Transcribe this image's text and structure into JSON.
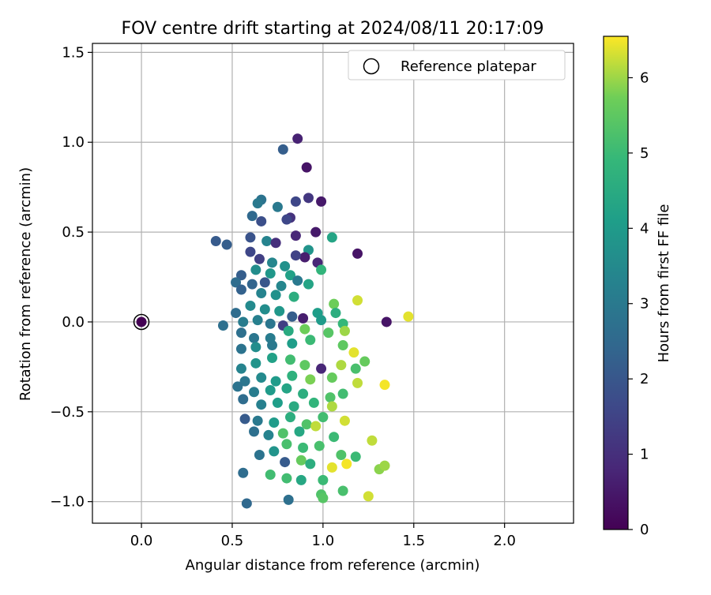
{
  "chart_data": {
    "type": "scatter",
    "title": "FOV centre drift starting at 2024/08/11 20:17:09",
    "xlabel": "Angular distance from reference (arcmin)",
    "ylabel": "Rotation from reference (arcmin)",
    "xlim": [
      -0.27,
      2.38
    ],
    "ylim": [
      -1.12,
      1.55
    ],
    "xticks": [
      0.0,
      0.5,
      1.0,
      1.5,
      2.0
    ],
    "xtick_labels": [
      "0.0",
      "0.5",
      "1.0",
      "1.5",
      "2.0"
    ],
    "yticks": [
      -1.0,
      -0.5,
      0.0,
      0.5,
      1.0,
      1.5
    ],
    "ytick_labels": [
      "−1.0",
      "−0.5",
      "0.0",
      "0.5",
      "1.0",
      "1.5"
    ],
    "grid": true,
    "legend": {
      "position": "upper-right",
      "label": "Reference platepar"
    },
    "reference_point": {
      "x": 0.0,
      "y": 0.0,
      "hours": 0.0
    },
    "colorbar": {
      "label": "Hours from first FF file",
      "colormap": "viridis",
      "range": [
        0,
        6.55
      ],
      "ticks": [
        0,
        1,
        2,
        3,
        4,
        5,
        6
      ],
      "tick_labels": [
        "0",
        "1",
        "2",
        "3",
        "4",
        "5",
        "6"
      ]
    },
    "series": [
      {
        "marker": "circle",
        "color_by": "hours",
        "points": [
          [
            0.86,
            1.02,
            0.7
          ],
          [
            0.78,
            0.96,
            2.2
          ],
          [
            0.91,
            0.86,
            0.4
          ],
          [
            0.92,
            0.69,
            1.2
          ],
          [
            0.99,
            0.67,
            0.5
          ],
          [
            0.85,
            0.67,
            1.6
          ],
          [
            0.66,
            0.68,
            2.8
          ],
          [
            0.64,
            0.66,
            3.0
          ],
          [
            0.75,
            0.64,
            3.0
          ],
          [
            0.82,
            0.58,
            1.1
          ],
          [
            0.8,
            0.57,
            1.6
          ],
          [
            0.61,
            0.59,
            2.5
          ],
          [
            0.66,
            0.56,
            1.8
          ],
          [
            0.96,
            0.5,
            0.5
          ],
          [
            0.85,
            0.48,
            0.8
          ],
          [
            1.05,
            0.47,
            4.3
          ],
          [
            0.41,
            0.45,
            2.1
          ],
          [
            0.6,
            0.47,
            1.9
          ],
          [
            0.47,
            0.43,
            2.2
          ],
          [
            0.69,
            0.45,
            3.3
          ],
          [
            0.74,
            0.44,
            1.0
          ],
          [
            0.92,
            0.4,
            3.8
          ],
          [
            0.9,
            0.36,
            0.6
          ],
          [
            0.97,
            0.33,
            0.8
          ],
          [
            0.6,
            0.39,
            1.6
          ],
          [
            0.65,
            0.35,
            1.4
          ],
          [
            0.72,
            0.33,
            3.4
          ],
          [
            0.79,
            0.31,
            3.7
          ],
          [
            0.85,
            0.37,
            1.5
          ],
          [
            1.19,
            0.38,
            0.4
          ],
          [
            0.55,
            0.26,
            2.2
          ],
          [
            0.63,
            0.29,
            3.6
          ],
          [
            0.71,
            0.27,
            3.9
          ],
          [
            0.82,
            0.26,
            4.2
          ],
          [
            0.99,
            0.29,
            4.8
          ],
          [
            0.52,
            0.22,
            2.6
          ],
          [
            0.61,
            0.21,
            2.4
          ],
          [
            0.68,
            0.22,
            2.0
          ],
          [
            0.77,
            0.2,
            3.4
          ],
          [
            0.86,
            0.23,
            3.0
          ],
          [
            0.92,
            0.21,
            4.3
          ],
          [
            0.55,
            0.18,
            2.3
          ],
          [
            0.66,
            0.16,
            3.3
          ],
          [
            0.74,
            0.15,
            3.7
          ],
          [
            0.84,
            0.14,
            4.6
          ],
          [
            1.06,
            0.1,
            5.7
          ],
          [
            1.19,
            0.12,
            6.3
          ],
          [
            0.52,
            0.05,
            2.6
          ],
          [
            0.6,
            0.09,
            3.5
          ],
          [
            0.68,
            0.07,
            3.6
          ],
          [
            0.76,
            0.06,
            3.9
          ],
          [
            0.83,
            0.03,
            2.2
          ],
          [
            0.97,
            0.05,
            4.1
          ],
          [
            1.07,
            0.05,
            4.6
          ],
          [
            0.45,
            -0.02,
            2.7
          ],
          [
            0.56,
            0.0,
            3.1
          ],
          [
            0.64,
            0.01,
            3.2
          ],
          [
            0.71,
            -0.01,
            2.9
          ],
          [
            0.78,
            -0.02,
            1.4
          ],
          [
            0.89,
            0.02,
            0.6
          ],
          [
            0.99,
            0.01,
            4.0
          ],
          [
            1.11,
            -0.01,
            4.9
          ],
          [
            1.35,
            0.0,
            0.4
          ],
          [
            1.47,
            0.03,
            6.4
          ],
          [
            0.55,
            -0.06,
            2.7
          ],
          [
            0.62,
            -0.09,
            2.9
          ],
          [
            0.71,
            -0.09,
            3.1
          ],
          [
            0.81,
            -0.05,
            4.5
          ],
          [
            0.9,
            -0.04,
            5.7
          ],
          [
            1.03,
            -0.06,
            5.4
          ],
          [
            1.12,
            -0.05,
            6.0
          ],
          [
            0.55,
            -0.15,
            2.8
          ],
          [
            0.63,
            -0.14,
            3.6
          ],
          [
            0.72,
            -0.13,
            3.0
          ],
          [
            0.83,
            -0.12,
            4.1
          ],
          [
            0.93,
            -0.1,
            5.0
          ],
          [
            1.11,
            -0.13,
            5.5
          ],
          [
            1.17,
            -0.17,
            6.4
          ],
          [
            0.55,
            -0.26,
            3.3
          ],
          [
            0.63,
            -0.23,
            3.8
          ],
          [
            0.72,
            -0.2,
            4.2
          ],
          [
            0.82,
            -0.21,
            5.1
          ],
          [
            0.9,
            -0.24,
            5.5
          ],
          [
            0.99,
            -0.26,
            0.8
          ],
          [
            1.1,
            -0.24,
            6.1
          ],
          [
            1.18,
            -0.26,
            5.2
          ],
          [
            1.23,
            -0.22,
            5.6
          ],
          [
            0.57,
            -0.33,
            2.9
          ],
          [
            0.66,
            -0.31,
            3.5
          ],
          [
            0.74,
            -0.33,
            4.0
          ],
          [
            0.83,
            -0.3,
            4.7
          ],
          [
            0.93,
            -0.32,
            5.8
          ],
          [
            1.05,
            -0.31,
            5.6
          ],
          [
            1.19,
            -0.34,
            6.2
          ],
          [
            1.34,
            -0.35,
            6.5
          ],
          [
            0.53,
            -0.36,
            2.8
          ],
          [
            0.62,
            -0.39,
            3.1
          ],
          [
            0.71,
            -0.38,
            4.0
          ],
          [
            0.8,
            -0.37,
            4.3
          ],
          [
            0.89,
            -0.4,
            4.6
          ],
          [
            1.04,
            -0.42,
            5.3
          ],
          [
            1.11,
            -0.4,
            5.1
          ],
          [
            0.56,
            -0.43,
            2.6
          ],
          [
            0.66,
            -0.46,
            3.2
          ],
          [
            0.75,
            -0.45,
            4.1
          ],
          [
            0.84,
            -0.47,
            4.5
          ],
          [
            0.95,
            -0.45,
            4.8
          ],
          [
            1.05,
            -0.47,
            6.1
          ],
          [
            0.57,
            -0.54,
            2.1
          ],
          [
            0.64,
            -0.55,
            3.0
          ],
          [
            0.73,
            -0.56,
            4.0
          ],
          [
            0.82,
            -0.53,
            4.6
          ],
          [
            0.91,
            -0.57,
            5.3
          ],
          [
            1.0,
            -0.53,
            5.1
          ],
          [
            1.12,
            -0.55,
            6.3
          ],
          [
            0.62,
            -0.61,
            2.7
          ],
          [
            0.7,
            -0.63,
            3.3
          ],
          [
            0.78,
            -0.62,
            5.3
          ],
          [
            0.87,
            -0.61,
            4.4
          ],
          [
            0.96,
            -0.58,
            6.2
          ],
          [
            1.06,
            -0.64,
            5.0
          ],
          [
            0.65,
            -0.74,
            2.8
          ],
          [
            0.73,
            -0.72,
            3.8
          ],
          [
            0.8,
            -0.68,
            5.2
          ],
          [
            0.89,
            -0.7,
            5.0
          ],
          [
            0.98,
            -0.69,
            5.2
          ],
          [
            1.1,
            -0.74,
            5.3
          ],
          [
            1.18,
            -0.75,
            5.0
          ],
          [
            1.27,
            -0.66,
            6.2
          ],
          [
            0.56,
            -0.84,
            2.6
          ],
          [
            0.71,
            -0.85,
            5.1
          ],
          [
            0.79,
            -0.78,
            2.1
          ],
          [
            0.88,
            -0.77,
            5.6
          ],
          [
            0.93,
            -0.79,
            4.6
          ],
          [
            1.05,
            -0.81,
            6.4
          ],
          [
            1.13,
            -0.79,
            6.5
          ],
          [
            1.31,
            -0.82,
            5.9
          ],
          [
            1.34,
            -0.8,
            6.0
          ],
          [
            0.8,
            -0.87,
            5.1
          ],
          [
            0.88,
            -0.88,
            4.4
          ],
          [
            1.0,
            -0.88,
            5.0
          ],
          [
            1.11,
            -0.94,
            5.2
          ],
          [
            0.58,
            -1.01,
            2.5
          ],
          [
            0.81,
            -0.99,
            2.7
          ],
          [
            0.99,
            -0.96,
            5.3
          ],
          [
            1.0,
            -0.98,
            5.4
          ],
          [
            1.25,
            -0.97,
            6.3
          ]
        ]
      }
    ]
  }
}
